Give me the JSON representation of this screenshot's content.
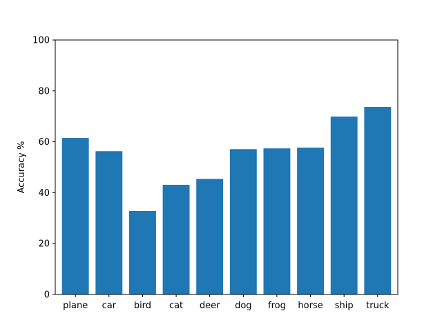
{
  "chart_data": {
    "type": "bar",
    "title": "",
    "xlabel": "",
    "ylabel": "Accuracy %",
    "categories": [
      "plane",
      "car",
      "bird",
      "cat",
      "deer",
      "dog",
      "frog",
      "horse",
      "ship",
      "truck"
    ],
    "values": [
      61.5,
      56.3,
      32.8,
      43.1,
      45.4,
      57.1,
      57.4,
      57.7,
      69.9,
      73.7
    ],
    "ylim": [
      0,
      100
    ],
    "yticks": [
      0,
      20,
      40,
      60,
      80,
      100
    ],
    "grid": false,
    "legend": "none",
    "bar_color": "#1f77b4"
  }
}
